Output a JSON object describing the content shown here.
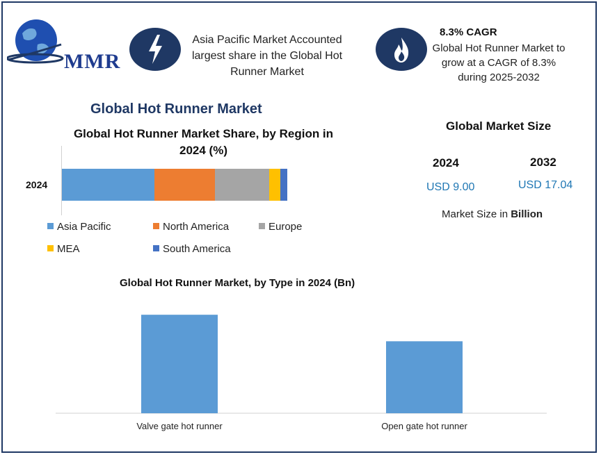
{
  "logo": {
    "text": "MMR"
  },
  "info_cards": {
    "card1": {
      "icon": "lightning-bolt-icon",
      "text": "Asia Pacific Market Accounted largest share in the Global Hot Runner Market"
    },
    "card2": {
      "icon": "flame-icon",
      "title": "8.3% CAGR",
      "text": "Global Hot Runner Market to grow at a CAGR of 8.3% during 2025-2032"
    }
  },
  "main_title": "Global Hot Runner Market",
  "market_size": {
    "title": "Global Market Size",
    "year_2024": "2024",
    "year_2032": "2032",
    "value_2024": "USD 9.00",
    "value_2032": "USD 17.04",
    "note_prefix": "Market Size in ",
    "note_unit": "Billion"
  },
  "colors": {
    "navy": "#1f3864",
    "asia_pacific": "#5b9bd5",
    "north_america": "#ed7d31",
    "europe": "#a5a5a5",
    "mea": "#ffc000",
    "south_america": "#4472c4"
  },
  "chart_data": [
    {
      "type": "bar",
      "orientation": "horizontal-stacked",
      "title": "Global Hot Runner Market Share, by Region in 2024 (%)",
      "categories": [
        "2024"
      ],
      "series": [
        {
          "name": "Asia Pacific",
          "values": [
            41
          ]
        },
        {
          "name": "North America",
          "values": [
            27
          ]
        },
        {
          "name": "Europe",
          "values": [
            24
          ]
        },
        {
          "name": "MEA",
          "values": [
            5
          ]
        },
        {
          "name": "South America",
          "values": [
            3
          ]
        }
      ],
      "legend": "bottom"
    },
    {
      "type": "bar",
      "title": "Global Hot Runner Market, by Type in 2024 (Bn)",
      "categories": [
        "Valve gate hot runner",
        "Open gate hot runner"
      ],
      "values": [
        5.2,
        3.8
      ],
      "ylim": [
        0,
        5.5
      ],
      "grid": false
    }
  ]
}
